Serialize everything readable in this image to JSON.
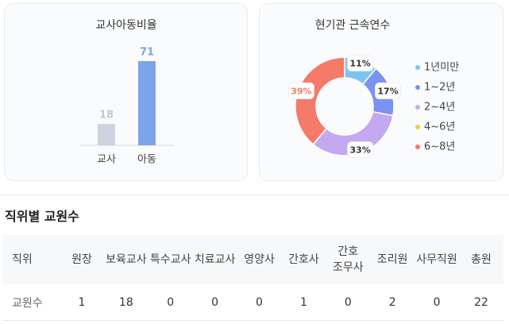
{
  "chart_data": [
    {
      "type": "bar",
      "title": "교사아동비율",
      "categories": [
        "교사",
        "아동"
      ],
      "values": [
        18,
        71
      ],
      "colors": [
        "#cdd3e0",
        "#7aa5e8"
      ],
      "label_colors": [
        "#c3c9d6",
        "#7aa5e8"
      ]
    },
    {
      "type": "pie",
      "title": "현기관 근속연수",
      "categories": [
        "1년미만",
        "1~2년",
        "2~4년",
        "4~6년",
        "6~8년"
      ],
      "values": [
        11,
        17,
        33,
        0,
        39
      ],
      "value_labels": [
        "11%",
        "17%",
        "33%",
        null,
        "39%"
      ],
      "colors": [
        "#7cc4f4",
        "#7b93f0",
        "#c4a8f0",
        "#f5c842",
        "#f47a6a"
      ],
      "legend": "right"
    }
  ],
  "table": {
    "title": "직위별 교원수",
    "header": [
      "직위",
      "원장",
      "보육교사",
      "특수교사",
      "치료교사",
      "영양사",
      "간호사",
      "간호 조무사",
      "조리원",
      "사무직원",
      "총원"
    ],
    "rows": [
      [
        "교원수",
        1,
        18,
        0,
        0,
        0,
        1,
        0,
        2,
        0,
        22
      ]
    ]
  }
}
